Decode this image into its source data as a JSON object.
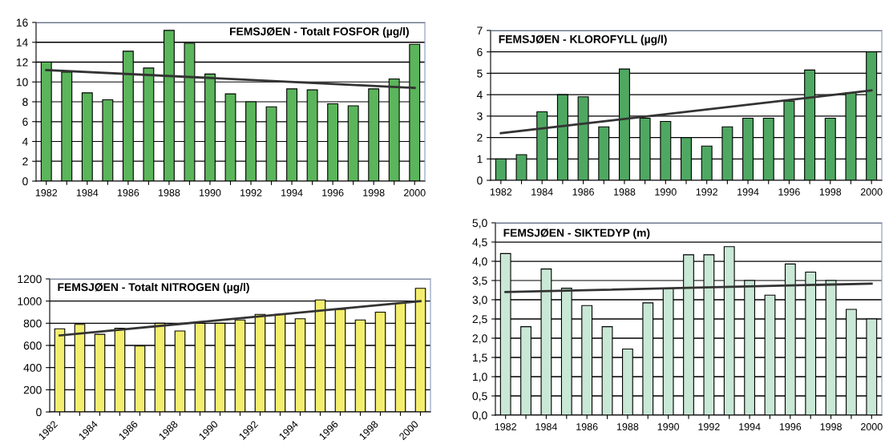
{
  "chart_data": [
    {
      "type": "bar",
      "title": "FEMSJØEN - Totalt FOSFOR (µg/l)",
      "categories": [
        "1982",
        null,
        "1984",
        null,
        "1986",
        null,
        "1988",
        null,
        "1990",
        null,
        "1992",
        null,
        "1994",
        null,
        "1996",
        null,
        "1998",
        null,
        "2000"
      ],
      "series": [
        {
          "color": "#5bb55b",
          "values": [
            12.0,
            11.0,
            8.9,
            8.2,
            13.1,
            11.4,
            15.2,
            13.9,
            10.8,
            8.8,
            8.0,
            7.5,
            9.3,
            9.2,
            7.8,
            7.6,
            9.3,
            10.3,
            13.8
          ]
        },
        {
          "type": "line",
          "color": "#333333",
          "values": [
            11.2,
            null,
            null,
            null,
            null,
            null,
            null,
            null,
            null,
            null,
            null,
            null,
            null,
            null,
            null,
            null,
            null,
            null,
            9.4
          ]
        }
      ],
      "ylim": [
        0,
        16
      ],
      "yticks": [
        0,
        2,
        4,
        6,
        8,
        10,
        12,
        14,
        16
      ],
      "grid": "y",
      "legend": false
    },
    {
      "type": "bar",
      "title": "FEMSJØEN - KLOROFYLL (µg/l)",
      "categories": [
        "1982",
        null,
        "1984",
        null,
        "1986",
        null,
        "1988",
        null,
        "1990",
        null,
        "1992",
        null,
        "1994",
        null,
        "1996",
        null,
        "1998",
        null,
        "2000"
      ],
      "series": [
        {
          "color": "#4fa862",
          "values": [
            1.0,
            1.2,
            3.2,
            4.0,
            3.9,
            2.5,
            5.2,
            2.9,
            2.75,
            2.0,
            1.6,
            2.5,
            2.9,
            2.9,
            3.7,
            5.15,
            2.9,
            4.1,
            6.0
          ]
        },
        {
          "type": "line",
          "color": "#333333",
          "values": [
            2.2,
            null,
            null,
            null,
            null,
            null,
            null,
            null,
            null,
            null,
            null,
            null,
            null,
            null,
            null,
            null,
            null,
            null,
            4.2
          ]
        }
      ],
      "ylim": [
        0,
        7
      ],
      "yticks": [
        0,
        1,
        2,
        3,
        4,
        5,
        6,
        7
      ],
      "grid": "y",
      "legend": false
    },
    {
      "type": "bar",
      "title": "FEMSJØEN - Totalt NITROGEN (µg/l)",
      "categories": [
        "1982",
        null,
        "1984",
        null,
        "1986",
        null,
        "1988",
        null,
        "1990",
        null,
        "1992",
        null,
        "1994",
        null,
        "1996",
        null,
        "1998",
        null,
        "2000"
      ],
      "series": [
        {
          "color": "#f3ee6e",
          "values": [
            750,
            790,
            700,
            755,
            595,
            800,
            730,
            800,
            800,
            830,
            880,
            880,
            840,
            1010,
            925,
            830,
            900,
            980,
            1115
          ]
        },
        {
          "type": "line",
          "color": "#333333",
          "values": [
            690,
            null,
            null,
            null,
            null,
            null,
            null,
            null,
            null,
            null,
            null,
            null,
            null,
            null,
            null,
            null,
            null,
            null,
            1000
          ]
        }
      ],
      "ylim": [
        0,
        1200
      ],
      "yticks": [
        0,
        200,
        400,
        600,
        800,
        1000,
        1200
      ],
      "grid": "y",
      "legend": false
    },
    {
      "type": "bar",
      "title": "FEMSJØEN - SIKTEDYP (m)",
      "categories": [
        "1982",
        null,
        "1984",
        null,
        "1986",
        null,
        "1988",
        null,
        "1990",
        null,
        "1992",
        null,
        "1994",
        null,
        "1996",
        null,
        "1998",
        null,
        "2000"
      ],
      "series": [
        {
          "color": "#c9e8d6",
          "values": [
            4.2,
            2.3,
            3.8,
            3.3,
            2.85,
            2.3,
            1.72,
            2.92,
            3.3,
            4.17,
            4.17,
            4.38,
            3.5,
            3.12,
            3.93,
            3.72,
            3.5,
            2.75,
            2.5
          ]
        },
        {
          "type": "line",
          "color": "#333333",
          "values": [
            3.2,
            null,
            null,
            null,
            null,
            null,
            null,
            null,
            null,
            null,
            null,
            null,
            null,
            null,
            null,
            null,
            null,
            null,
            3.42
          ]
        }
      ],
      "ylim": [
        0,
        5.0
      ],
      "yticks": [
        {
          "value": 0,
          "label": "0,0"
        },
        {
          "value": 0.5,
          "label": "0,5"
        },
        {
          "value": 1.0,
          "label": "1,0"
        },
        {
          "value": 1.5,
          "label": "1,5"
        },
        {
          "value": 2.0,
          "label": "2,0"
        },
        {
          "value": 2.5,
          "label": "2,5"
        },
        {
          "value": 3.0,
          "label": "3,0"
        },
        {
          "value": 3.5,
          "label": "3,5"
        },
        {
          "value": 4.0,
          "label": "4,0"
        },
        {
          "value": 4.5,
          "label": "4,5"
        },
        {
          "value": 5.0,
          "label": "5,0"
        }
      ],
      "grid": "y",
      "legend": false
    }
  ]
}
